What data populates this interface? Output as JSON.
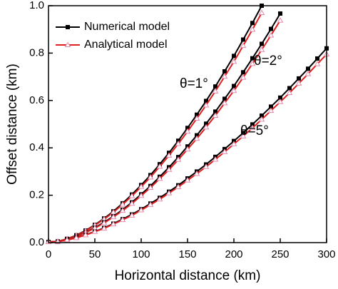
{
  "chart_data": {
    "type": "line",
    "xlabel": "Horizontal distance (km)",
    "ylabel": "Offset distance (km)",
    "xlim": [
      0,
      300
    ],
    "xticks": [
      0,
      50,
      100,
      150,
      200,
      250,
      300
    ],
    "ylim": [
      0,
      1
    ],
    "yticks": [
      {
        "value": 0,
        "label": "0.0"
      },
      0.2,
      0.4,
      0.6,
      0.8,
      {
        "value": 1,
        "label": "1.0"
      }
    ],
    "legend": "upper left",
    "annotations": [
      "θ=1°",
      "θ=2°",
      "θ=5°"
    ],
    "series": [
      {
        "name": "Numerical model",
        "color": "#000000",
        "marker": "square",
        "x": [
          0,
          10,
          20,
          30,
          40,
          50,
          60,
          70,
          80,
          90,
          100,
          110,
          120,
          130,
          140,
          150,
          160,
          170,
          180,
          190,
          200,
          210,
          220,
          230
        ],
        "values": [
          0.003,
          0.005,
          0.016,
          0.031,
          0.051,
          0.075,
          0.102,
          0.132,
          0.166,
          0.203,
          0.243,
          0.285,
          0.331,
          0.379,
          0.43,
          0.484,
          0.54,
          0.598,
          0.659,
          0.723,
          0.788,
          0.857,
          0.927,
          1.0
        ]
      },
      {
        "name": "Analytical model",
        "color": "#e02020",
        "marker": "triangle",
        "x": [
          0,
          10,
          20,
          30,
          40,
          50,
          60,
          70,
          80,
          90,
          100,
          110,
          120,
          130,
          140,
          150,
          160,
          170,
          180,
          190,
          200,
          210,
          220,
          230
        ],
        "values": [
          0.003,
          0.005,
          0.016,
          0.03,
          0.049,
          0.073,
          0.099,
          0.128,
          0.161,
          0.197,
          0.236,
          0.276,
          0.321,
          0.368,
          0.417,
          0.469,
          0.524,
          0.58,
          0.639,
          0.701,
          0.764,
          0.831,
          0.899,
          0.97
        ]
      },
      {
        "name": "Numerical model",
        "color": "#000000",
        "marker": "square",
        "x": [
          0,
          10,
          20,
          30,
          40,
          50,
          60,
          70,
          80,
          90,
          100,
          110,
          120,
          130,
          140,
          150,
          160,
          170,
          180,
          190,
          200,
          210,
          220,
          230,
          240,
          250
        ],
        "values": [
          0.003,
          0.004,
          0.013,
          0.026,
          0.043,
          0.063,
          0.086,
          0.111,
          0.139,
          0.17,
          0.204,
          0.239,
          0.278,
          0.318,
          0.361,
          0.406,
          0.453,
          0.502,
          0.553,
          0.607,
          0.661,
          0.719,
          0.778,
          0.839,
          0.902,
          0.967
        ]
      },
      {
        "name": "Analytical model",
        "color": "#e02020",
        "marker": "triangle",
        "x": [
          0,
          10,
          20,
          30,
          40,
          50,
          60,
          70,
          80,
          90,
          100,
          110,
          120,
          130,
          140,
          150,
          160,
          170,
          180,
          190,
          200,
          210,
          220,
          230,
          240,
          250
        ],
        "values": [
          0.003,
          0.004,
          0.013,
          0.025,
          0.042,
          0.061,
          0.083,
          0.108,
          0.135,
          0.165,
          0.198,
          0.232,
          0.27,
          0.308,
          0.35,
          0.394,
          0.439,
          0.487,
          0.536,
          0.589,
          0.641,
          0.697,
          0.755,
          0.814,
          0.875,
          0.938
        ]
      },
      {
        "name": "Numerical model",
        "color": "#000000",
        "marker": "square",
        "x": [
          0,
          10,
          20,
          30,
          40,
          50,
          60,
          70,
          80,
          90,
          100,
          110,
          120,
          130,
          140,
          150,
          160,
          170,
          180,
          190,
          200,
          210,
          220,
          230,
          240,
          250,
          260,
          270,
          280,
          290,
          300
        ],
        "values": [
          0.003,
          0.004,
          0.011,
          0.021,
          0.033,
          0.047,
          0.062,
          0.08,
          0.099,
          0.119,
          0.141,
          0.165,
          0.189,
          0.215,
          0.242,
          0.271,
          0.3,
          0.33,
          0.362,
          0.395,
          0.429,
          0.463,
          0.499,
          0.536,
          0.574,
          0.612,
          0.652,
          0.693,
          0.734,
          0.777,
          0.82
        ]
      },
      {
        "name": "Analytical model",
        "color": "#e02020",
        "marker": "triangle",
        "x": [
          0,
          10,
          20,
          30,
          40,
          50,
          60,
          70,
          80,
          90,
          100,
          110,
          120,
          130,
          140,
          150,
          160,
          170,
          180,
          190,
          200,
          210,
          220,
          230,
          240,
          250,
          260,
          270,
          280,
          290,
          300
        ],
        "values": [
          0.003,
          0.004,
          0.011,
          0.02,
          0.032,
          0.046,
          0.06,
          0.078,
          0.096,
          0.115,
          0.137,
          0.16,
          0.183,
          0.209,
          0.235,
          0.263,
          0.291,
          0.32,
          0.351,
          0.383,
          0.416,
          0.449,
          0.484,
          0.52,
          0.557,
          0.594,
          0.632,
          0.672,
          0.712,
          0.754,
          0.795
        ]
      }
    ]
  }
}
